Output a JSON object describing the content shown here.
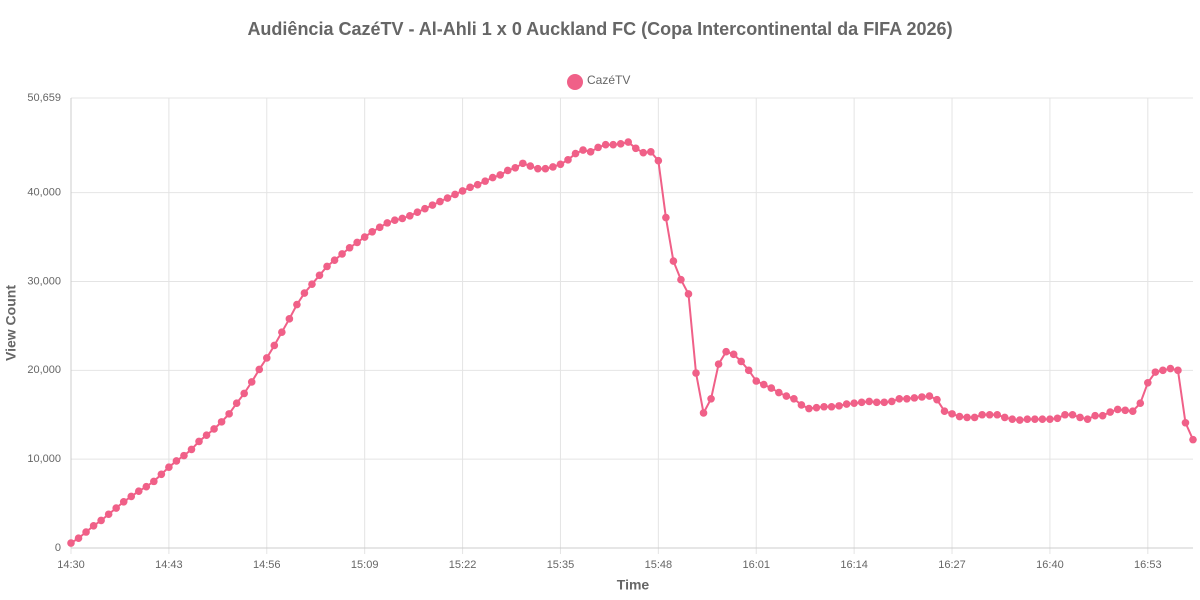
{
  "chart_data": {
    "type": "line",
    "title": "Audiência CazéTV - Al-Ahli 1 x 0 Auckland FC (Copa Intercontinental da FIFA 2026)",
    "x_label": "Time",
    "y_label": "View Count",
    "x": [
      "14:30",
      "14:31",
      "14:32",
      "14:33",
      "14:34",
      "14:35",
      "14:36",
      "14:37",
      "14:38",
      "14:39",
      "14:40",
      "14:41",
      "14:42",
      "14:43",
      "14:44",
      "14:45",
      "14:46",
      "14:47",
      "14:48",
      "14:49",
      "14:50",
      "14:51",
      "14:52",
      "14:53",
      "14:54",
      "14:55",
      "14:56",
      "14:57",
      "14:58",
      "14:59",
      "15:00",
      "15:01",
      "15:02",
      "15:03",
      "15:04",
      "15:05",
      "15:06",
      "15:07",
      "15:08",
      "15:09",
      "15:10",
      "15:11",
      "15:12",
      "15:13",
      "15:14",
      "15:15",
      "15:16",
      "15:17",
      "15:18",
      "15:19",
      "15:20",
      "15:21",
      "15:22",
      "15:23",
      "15:24",
      "15:25",
      "15:26",
      "15:27",
      "15:28",
      "15:29",
      "15:30",
      "15:31",
      "15:32",
      "15:33",
      "15:34",
      "15:35",
      "15:36",
      "15:37",
      "15:38",
      "15:39",
      "15:40",
      "15:41",
      "15:42",
      "15:43",
      "15:44",
      "15:45",
      "15:46",
      "15:47",
      "15:48",
      "15:49",
      "15:50",
      "15:51",
      "15:52",
      "15:53",
      "15:54",
      "15:55",
      "15:56",
      "15:57",
      "15:58",
      "15:59",
      "16:00",
      "16:01",
      "16:02",
      "16:03",
      "16:04",
      "16:05",
      "16:06",
      "16:07",
      "16:08",
      "16:09",
      "16:10",
      "16:11",
      "16:12",
      "16:13",
      "16:14",
      "16:15",
      "16:16",
      "16:17",
      "16:18",
      "16:19",
      "16:20",
      "16:21",
      "16:22",
      "16:23",
      "16:24",
      "16:25",
      "16:26",
      "16:27",
      "16:28",
      "16:29",
      "16:30",
      "16:31",
      "16:32",
      "16:33",
      "16:34",
      "16:35",
      "16:36",
      "16:37",
      "16:38",
      "16:39",
      "16:40",
      "16:41",
      "16:42",
      "16:43",
      "16:44",
      "16:45",
      "16:46",
      "16:47",
      "16:48",
      "16:49",
      "16:50",
      "16:51",
      "16:52",
      "16:53",
      "16:54",
      "16:55",
      "16:56",
      "16:57",
      "16:58",
      "16:59"
    ],
    "series": [
      {
        "name": "CazéTV",
        "color": "#f06088",
        "values": [
          560,
          1100,
          1800,
          2500,
          3100,
          3800,
          4500,
          5200,
          5800,
          6400,
          6900,
          7500,
          8300,
          9100,
          9800,
          10400,
          11100,
          12000,
          12700,
          13400,
          14200,
          15100,
          16300,
          17400,
          18700,
          20100,
          21400,
          22800,
          24300,
          25800,
          27400,
          28700,
          29700,
          30700,
          31700,
          32400,
          33100,
          33800,
          34400,
          35000,
          35600,
          36100,
          36600,
          36900,
          37100,
          37400,
          37800,
          38200,
          38600,
          39000,
          39400,
          39800,
          40200,
          40600,
          40900,
          41300,
          41700,
          42000,
          42500,
          42800,
          43300,
          43000,
          42700,
          42700,
          42900,
          43200,
          43700,
          44400,
          44800,
          44600,
          45100,
          45400,
          45400,
          45500,
          45700,
          45000,
          44500,
          44600,
          43600,
          37200,
          32300,
          30200,
          28600,
          19700,
          15200,
          16800,
          20700,
          22100,
          21800,
          21000,
          20000,
          18800,
          18400,
          18000,
          17500,
          17100,
          16800,
          16100,
          15700,
          15800,
          15900,
          15900,
          16000,
          16200,
          16300,
          16400,
          16500,
          16400,
          16400,
          16500,
          16800,
          16800,
          16900,
          17000,
          17100,
          16700,
          15400,
          15100,
          14800,
          14700,
          14700,
          15000,
          15000,
          15000,
          14700,
          14500,
          14400,
          14500,
          14500,
          14500,
          14500,
          14600,
          15000,
          15000,
          14700,
          14500,
          14900,
          14900,
          15300,
          15600,
          15500,
          15400,
          16300,
          18600,
          19800,
          20000,
          20200,
          20000,
          14100,
          12200
        ]
      }
    ],
    "xlim": [
      "14:30",
      "16:59"
    ],
    "xticks": [
      "14:30",
      "14:43",
      "14:56",
      "15:09",
      "15:22",
      "15:35",
      "15:48",
      "16:01",
      "16:14",
      "16:27",
      "16:40",
      "16:53"
    ],
    "ylim": [
      0,
      50659
    ],
    "yticks": [
      0,
      {
        "value": 10000,
        "label": "10,000"
      },
      {
        "value": 20000,
        "label": "20,000"
      },
      {
        "value": 30000,
        "label": "30,000"
      },
      {
        "value": 40000,
        "label": "40,000"
      },
      {
        "value": 50659,
        "label": "50,659"
      }
    ],
    "grid": true
  }
}
